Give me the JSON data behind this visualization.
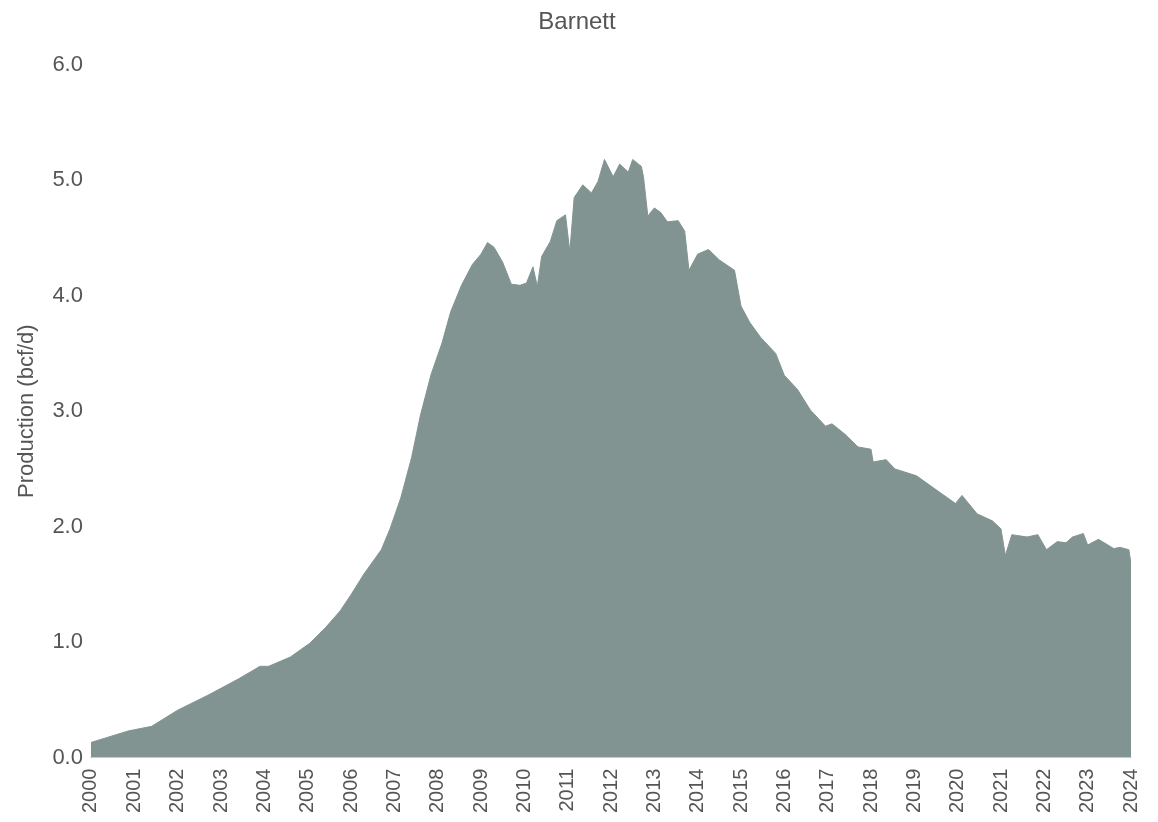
{
  "chart_data": {
    "type": "area",
    "title": "Barnett",
    "ylabel": "Production (bcf/d)",
    "x": [
      2000.0,
      2000.86,
      2001.4,
      2002.0,
      2002.7,
      2003.4,
      2003.9,
      2004.1,
      2004.6,
      2005.05,
      2005.4,
      2005.75,
      2006.0,
      2006.3,
      2006.7,
      2006.9,
      2007.15,
      2007.4,
      2007.6,
      2007.85,
      2008.1,
      2008.3,
      2008.55,
      2008.8,
      2009.0,
      2009.15,
      2009.3,
      2009.5,
      2009.7,
      2009.9,
      2010.05,
      2010.2,
      2010.3,
      2010.4,
      2010.6,
      2010.75,
      2010.95,
      2011.05,
      2011.15,
      2011.35,
      2011.55,
      2011.7,
      2011.85,
      2012.05,
      2012.2,
      2012.4,
      2012.5,
      2012.7,
      2012.75,
      2012.85,
      2013.0,
      2013.15,
      2013.3,
      2013.55,
      2013.7,
      2013.8,
      2014.0,
      2014.25,
      2014.5,
      2014.85,
      2015.0,
      2015.2,
      2015.45,
      2015.8,
      2016.0,
      2016.3,
      2016.6,
      2016.95,
      2017.1,
      2017.4,
      2017.7,
      2018.0,
      2018.05,
      2018.35,
      2018.55,
      2019.05,
      2019.5,
      2019.95,
      2020.1,
      2020.45,
      2020.8,
      2021.0,
      2021.1,
      2021.25,
      2021.6,
      2021.85,
      2022.05,
      2022.3,
      2022.5,
      2022.65,
      2022.9,
      2023.0,
      2023.25,
      2023.6,
      2023.75,
      2023.95,
      2024.0
    ],
    "series": [
      {
        "color": "#829491",
        "values": [
          0.13,
          0.23,
          0.27,
          0.41,
          0.54,
          0.68,
          0.79,
          0.79,
          0.87,
          0.99,
          1.12,
          1.27,
          1.41,
          1.59,
          1.8,
          1.98,
          2.25,
          2.6,
          2.96,
          3.32,
          3.59,
          3.86,
          4.09,
          4.27,
          4.36,
          4.46,
          4.42,
          4.29,
          4.1,
          4.09,
          4.11,
          4.25,
          4.08,
          4.34,
          4.47,
          4.65,
          4.7,
          4.38,
          4.85,
          4.96,
          4.89,
          4.99,
          5.18,
          5.03,
          5.14,
          5.07,
          5.18,
          5.12,
          5.03,
          4.69,
          4.76,
          4.72,
          4.64,
          4.65,
          4.56,
          4.22,
          4.36,
          4.4,
          4.31,
          4.22,
          3.91,
          3.77,
          3.64,
          3.5,
          3.31,
          3.19,
          3.01,
          2.87,
          2.89,
          2.8,
          2.69,
          2.67,
          2.56,
          2.58,
          2.5,
          2.44,
          2.32,
          2.2,
          2.27,
          2.11,
          2.05,
          1.98,
          1.75,
          1.93,
          1.91,
          1.93,
          1.8,
          1.87,
          1.86,
          1.91,
          1.94,
          1.84,
          1.89,
          1.81,
          1.82,
          1.8,
          1.68
        ]
      }
    ],
    "xlim": [
      2000,
      2024
    ],
    "xticks": [
      2000,
      2001,
      2002,
      2003,
      2004,
      2005,
      2006,
      2007,
      2008,
      2009,
      2010,
      2011,
      2012,
      2013,
      2014,
      2015,
      2016,
      2017,
      2018,
      2019,
      2020,
      2021,
      2022,
      2023,
      2024
    ],
    "ylim": [
      0,
      6
    ],
    "yticks": [
      {
        "value": 0,
        "label": "0.0"
      },
      {
        "value": 1,
        "label": "1.0"
      },
      {
        "value": 2,
        "label": "2.0"
      },
      {
        "value": 3,
        "label": "3.0"
      },
      {
        "value": 4,
        "label": "4.0"
      },
      {
        "value": 5,
        "label": "5.0"
      },
      {
        "value": 6,
        "label": "6.0"
      }
    ],
    "grid": false,
    "legend": false,
    "marker": "none"
  }
}
